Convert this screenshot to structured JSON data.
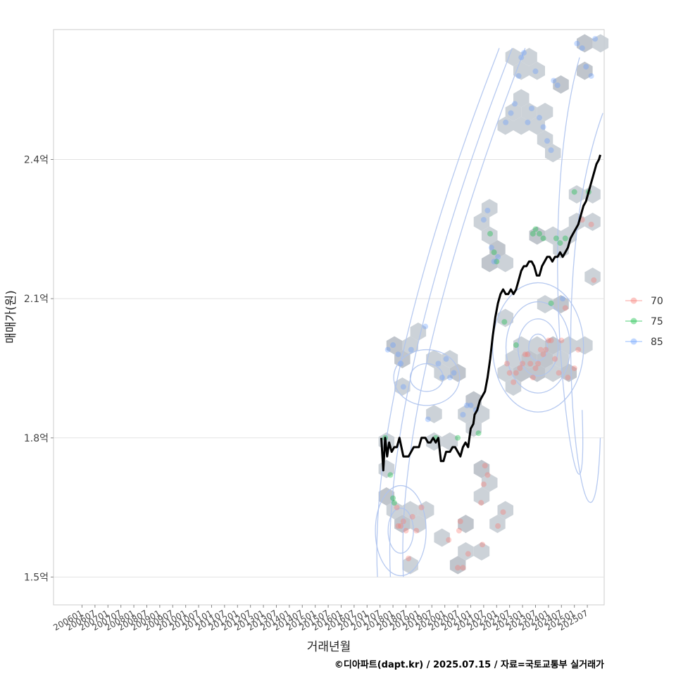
{
  "chart_data": {
    "type": "scatter",
    "title": "",
    "xlabel": "거래년월",
    "ylabel": "매매가(원)",
    "caption": "©디아파트(dapt.kr) / 2025.07.15 / 자료=국토교통부 실거래가",
    "x_ticks": [
      "200601",
      "200607",
      "200701",
      "200707",
      "200801",
      "200807",
      "200901",
      "200907",
      "201001",
      "201007",
      "201101",
      "201107",
      "201201",
      "201207",
      "201301",
      "201307",
      "201401",
      "201407",
      "201501",
      "201507",
      "201601",
      "201607",
      "201701",
      "201707",
      "201801",
      "201807",
      "201901",
      "201907",
      "202001",
      "202007",
      "202101",
      "202107",
      "202201",
      "202207",
      "202301",
      "202307",
      "202401",
      "202407",
      "202501",
      "202507"
    ],
    "y_ticks": [
      {
        "value": 1.5,
        "label": "1.5억"
      },
      {
        "value": 1.8,
        "label": "1.8억"
      },
      {
        "value": 2.1,
        "label": "2.1억"
      },
      {
        "value": 2.4,
        "label": "2.4억"
      }
    ],
    "xlim": [
      -1.2,
      41.3
    ],
    "ylim": [
      1.44,
      2.68
    ],
    "unit": "억원",
    "legend": {
      "placement": "right",
      "entries": [
        {
          "name": "70",
          "color": "#F8766D"
        },
        {
          "name": "75",
          "color": "#00BA38"
        },
        {
          "name": "85",
          "color": "#619CFF"
        }
      ]
    },
    "trend_line": {
      "name": "moving-average",
      "color": "#000000",
      "points": [
        [
          24.1,
          1.8
        ],
        [
          24.25,
          1.73
        ],
        [
          24.4,
          1.8
        ],
        [
          24.55,
          1.76
        ],
        [
          24.7,
          1.79
        ],
        [
          24.9,
          1.77
        ],
        [
          25.1,
          1.78
        ],
        [
          25.3,
          1.78
        ],
        [
          25.5,
          1.8
        ],
        [
          25.8,
          1.76
        ],
        [
          26.2,
          1.76
        ],
        [
          26.6,
          1.78
        ],
        [
          27.0,
          1.78
        ],
        [
          27.2,
          1.8
        ],
        [
          27.5,
          1.8
        ],
        [
          27.7,
          1.79
        ],
        [
          27.9,
          1.79
        ],
        [
          28.1,
          1.8
        ],
        [
          28.3,
          1.79
        ],
        [
          28.5,
          1.8
        ],
        [
          28.7,
          1.75
        ],
        [
          28.9,
          1.75
        ],
        [
          29.1,
          1.77
        ],
        [
          29.4,
          1.77
        ],
        [
          29.6,
          1.78
        ],
        [
          29.8,
          1.78
        ],
        [
          30.0,
          1.77
        ],
        [
          30.2,
          1.76
        ],
        [
          30.4,
          1.78
        ],
        [
          30.6,
          1.79
        ],
        [
          30.8,
          1.78
        ],
        [
          31.0,
          1.82
        ],
        [
          31.2,
          1.83
        ],
        [
          31.3,
          1.85
        ],
        [
          31.5,
          1.86
        ],
        [
          31.7,
          1.88
        ],
        [
          31.9,
          1.89
        ],
        [
          32.1,
          1.9
        ],
        [
          32.3,
          1.93
        ],
        [
          32.5,
          1.97
        ],
        [
          32.7,
          2.02
        ],
        [
          32.9,
          2.06
        ],
        [
          33.1,
          2.09
        ],
        [
          33.3,
          2.11
        ],
        [
          33.5,
          2.12
        ],
        [
          33.7,
          2.11
        ],
        [
          33.9,
          2.11
        ],
        [
          34.1,
          2.12
        ],
        [
          34.3,
          2.11
        ],
        [
          34.5,
          2.12
        ],
        [
          34.7,
          2.14
        ],
        [
          34.9,
          2.16
        ],
        [
          35.1,
          2.17
        ],
        [
          35.3,
          2.17
        ],
        [
          35.5,
          2.18
        ],
        [
          35.7,
          2.18
        ],
        [
          35.9,
          2.17
        ],
        [
          36.1,
          2.15
        ],
        [
          36.3,
          2.15
        ],
        [
          36.5,
          2.17
        ],
        [
          36.7,
          2.18
        ],
        [
          36.9,
          2.19
        ],
        [
          37.1,
          2.19
        ],
        [
          37.3,
          2.18
        ],
        [
          37.5,
          2.19
        ],
        [
          37.7,
          2.19
        ],
        [
          37.9,
          2.2
        ],
        [
          38.1,
          2.19
        ],
        [
          38.3,
          2.2
        ],
        [
          38.5,
          2.21
        ],
        [
          38.7,
          2.23
        ],
        [
          38.9,
          2.24
        ],
        [
          39.1,
          2.25
        ],
        [
          39.3,
          2.26
        ],
        [
          39.5,
          2.28
        ],
        [
          39.7,
          2.3
        ],
        [
          39.9,
          2.31
        ],
        [
          40.1,
          2.33
        ],
        [
          40.3,
          2.35
        ],
        [
          40.5,
          2.37
        ],
        [
          40.7,
          2.39
        ],
        [
          40.9,
          2.4
        ],
        [
          41.0,
          2.41
        ]
      ]
    },
    "series": [
      {
        "name": "70",
        "points": [
          [
            25.3,
            1.65
          ],
          [
            25.4,
            1.61
          ],
          [
            25.6,
            1.61
          ],
          [
            25.8,
            1.62
          ],
          [
            26.0,
            1.6
          ],
          [
            26.2,
            1.54
          ],
          [
            26.5,
            1.63
          ],
          [
            26.8,
            1.6
          ],
          [
            27.2,
            1.65
          ],
          [
            29.3,
            1.58
          ],
          [
            30.0,
            1.52
          ],
          [
            30.1,
            1.6
          ],
          [
            30.2,
            1.62
          ],
          [
            30.4,
            1.52
          ],
          [
            30.8,
            1.55
          ],
          [
            31.9,
            1.57
          ],
          [
            31.8,
            1.66
          ],
          [
            32.0,
            1.7
          ],
          [
            32.1,
            1.74
          ],
          [
            32.3,
            1.72
          ],
          [
            33.1,
            1.61
          ],
          [
            33.5,
            1.64
          ],
          [
            33.8,
            1.96
          ],
          [
            34.0,
            1.94
          ],
          [
            34.3,
            1.92
          ],
          [
            34.5,
            1.94
          ],
          [
            34.8,
            1.95
          ],
          [
            35.0,
            1.96
          ],
          [
            35.2,
            1.98
          ],
          [
            35.4,
            1.98
          ],
          [
            35.6,
            1.96
          ],
          [
            35.8,
            1.93
          ],
          [
            36.0,
            1.95
          ],
          [
            36.2,
            1.96
          ],
          [
            36.4,
            1.99
          ],
          [
            36.6,
            1.98
          ],
          [
            36.8,
            1.99
          ],
          [
            37.0,
            2.01
          ],
          [
            37.2,
            2.01
          ],
          [
            37.5,
            1.97
          ],
          [
            37.8,
            1.94
          ],
          [
            38.0,
            2.01
          ],
          [
            38.3,
            2.08
          ],
          [
            38.5,
            1.93
          ],
          [
            39.0,
            1.95
          ],
          [
            39.3,
            1.99
          ],
          [
            39.6,
            2.27
          ],
          [
            40.3,
            2.26
          ],
          [
            40.5,
            2.14
          ]
        ]
      },
      {
        "name": "75",
        "points": [
          [
            24.4,
            1.8
          ],
          [
            24.8,
            1.72
          ],
          [
            25.0,
            1.67
          ],
          [
            25.1,
            1.66
          ],
          [
            28.3,
            1.8
          ],
          [
            30.0,
            1.8
          ],
          [
            31.6,
            1.81
          ],
          [
            32.5,
            2.24
          ],
          [
            32.8,
            2.2
          ],
          [
            33.0,
            2.18
          ],
          [
            33.6,
            2.05
          ],
          [
            34.5,
            2.0
          ],
          [
            35.8,
            2.24
          ],
          [
            36.0,
            2.25
          ],
          [
            36.3,
            2.24
          ],
          [
            36.6,
            2.23
          ],
          [
            37.2,
            2.09
          ],
          [
            37.6,
            2.23
          ],
          [
            37.9,
            2.22
          ],
          [
            38.3,
            2.23
          ],
          [
            39.0,
            2.33
          ],
          [
            40.1,
            2.33
          ]
        ]
      },
      {
        "name": "85",
        "points": [
          [
            24.6,
            1.99
          ],
          [
            25.0,
            2.0
          ],
          [
            25.4,
            1.98
          ],
          [
            25.6,
            1.96
          ],
          [
            25.8,
            1.91
          ],
          [
            26.4,
            1.99
          ],
          [
            27.5,
            2.04
          ],
          [
            27.7,
            1.84
          ],
          [
            28.5,
            1.96
          ],
          [
            28.8,
            1.93
          ],
          [
            29.1,
            1.97
          ],
          [
            29.4,
            1.93
          ],
          [
            29.7,
            1.94
          ],
          [
            30.4,
            1.85
          ],
          [
            30.7,
            1.87
          ],
          [
            31.0,
            1.87
          ],
          [
            31.4,
            1.86
          ],
          [
            32.0,
            2.27
          ],
          [
            32.3,
            2.29
          ],
          [
            32.6,
            2.21
          ],
          [
            32.8,
            2.18
          ],
          [
            33.1,
            2.19
          ],
          [
            33.7,
            2.48
          ],
          [
            34.1,
            2.5
          ],
          [
            34.4,
            2.52
          ],
          [
            34.7,
            2.58
          ],
          [
            34.9,
            2.62
          ],
          [
            35.1,
            2.63
          ],
          [
            35.4,
            2.48
          ],
          [
            35.7,
            2.51
          ],
          [
            36.0,
            2.59
          ],
          [
            36.3,
            2.49
          ],
          [
            36.6,
            2.47
          ],
          [
            36.9,
            2.44
          ],
          [
            37.2,
            2.42
          ],
          [
            37.4,
            2.57
          ],
          [
            37.7,
            2.56
          ],
          [
            38.1,
            2.1
          ],
          [
            39.2,
            2.65
          ],
          [
            39.6,
            2.64
          ],
          [
            39.9,
            2.6
          ],
          [
            40.3,
            2.58
          ],
          [
            40.6,
            2.66
          ]
        ]
      }
    ]
  }
}
